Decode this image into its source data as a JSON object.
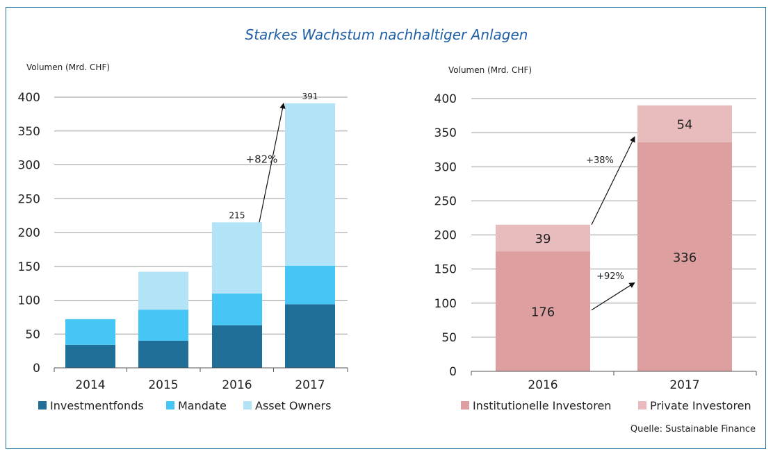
{
  "title": "Starkes Wachstum nachhaltiger Anlagen",
  "source": "Quelle: Sustainable Finance",
  "chart_data": [
    {
      "type": "bar",
      "stacked": true,
      "ylabel": "Volumen (Mrd. CHF)",
      "ylim": [
        0,
        400
      ],
      "yticks": [
        0,
        50,
        100,
        150,
        200,
        250,
        300,
        350,
        400
      ],
      "grid": true,
      "legend": "bottom",
      "categories": [
        "2014",
        "2015",
        "2016",
        "2017"
      ],
      "series": [
        {
          "name": "Investmentfonds",
          "color": "#1f6f99",
          "values": [
            34,
            40,
            63,
            94
          ]
        },
        {
          "name": "Mandate",
          "color": "#45c6f4",
          "values": [
            38,
            46,
            47,
            57
          ]
        },
        {
          "name": "Asset Owners",
          "color": "#b2e3f7",
          "values": [
            0,
            56,
            105,
            240
          ]
        }
      ],
      "totals": [
        "",
        "",
        "215",
        "391"
      ],
      "annotations": [
        {
          "text": "+82%",
          "from": [
            "2016",
            215
          ],
          "to": [
            "2017",
            391
          ]
        }
      ]
    },
    {
      "type": "bar",
      "stacked": true,
      "ylabel": "Volumen (Mrd. CHF)",
      "ylim": [
        0,
        400
      ],
      "yticks": [
        0,
        50,
        100,
        150,
        200,
        250,
        300,
        350,
        400
      ],
      "grid": true,
      "legend": "bottom",
      "categories": [
        "2016",
        "2017"
      ],
      "series": [
        {
          "name": "Institutionelle Investoren",
          "color": "#dd9f9f",
          "values": [
            176,
            336
          ],
          "labels": [
            "176",
            "336"
          ]
        },
        {
          "name": "Private Investoren",
          "color": "#e8bcbc",
          "values": [
            39,
            54
          ],
          "labels": [
            "39",
            "54"
          ]
        }
      ],
      "annotations": [
        {
          "text": "+38%",
          "from": [
            "2016",
            215
          ],
          "to": [
            "2017",
            344
          ]
        },
        {
          "text": "+92%",
          "from": [
            "2016",
            90
          ],
          "to": [
            "2017",
            130
          ]
        }
      ]
    }
  ]
}
